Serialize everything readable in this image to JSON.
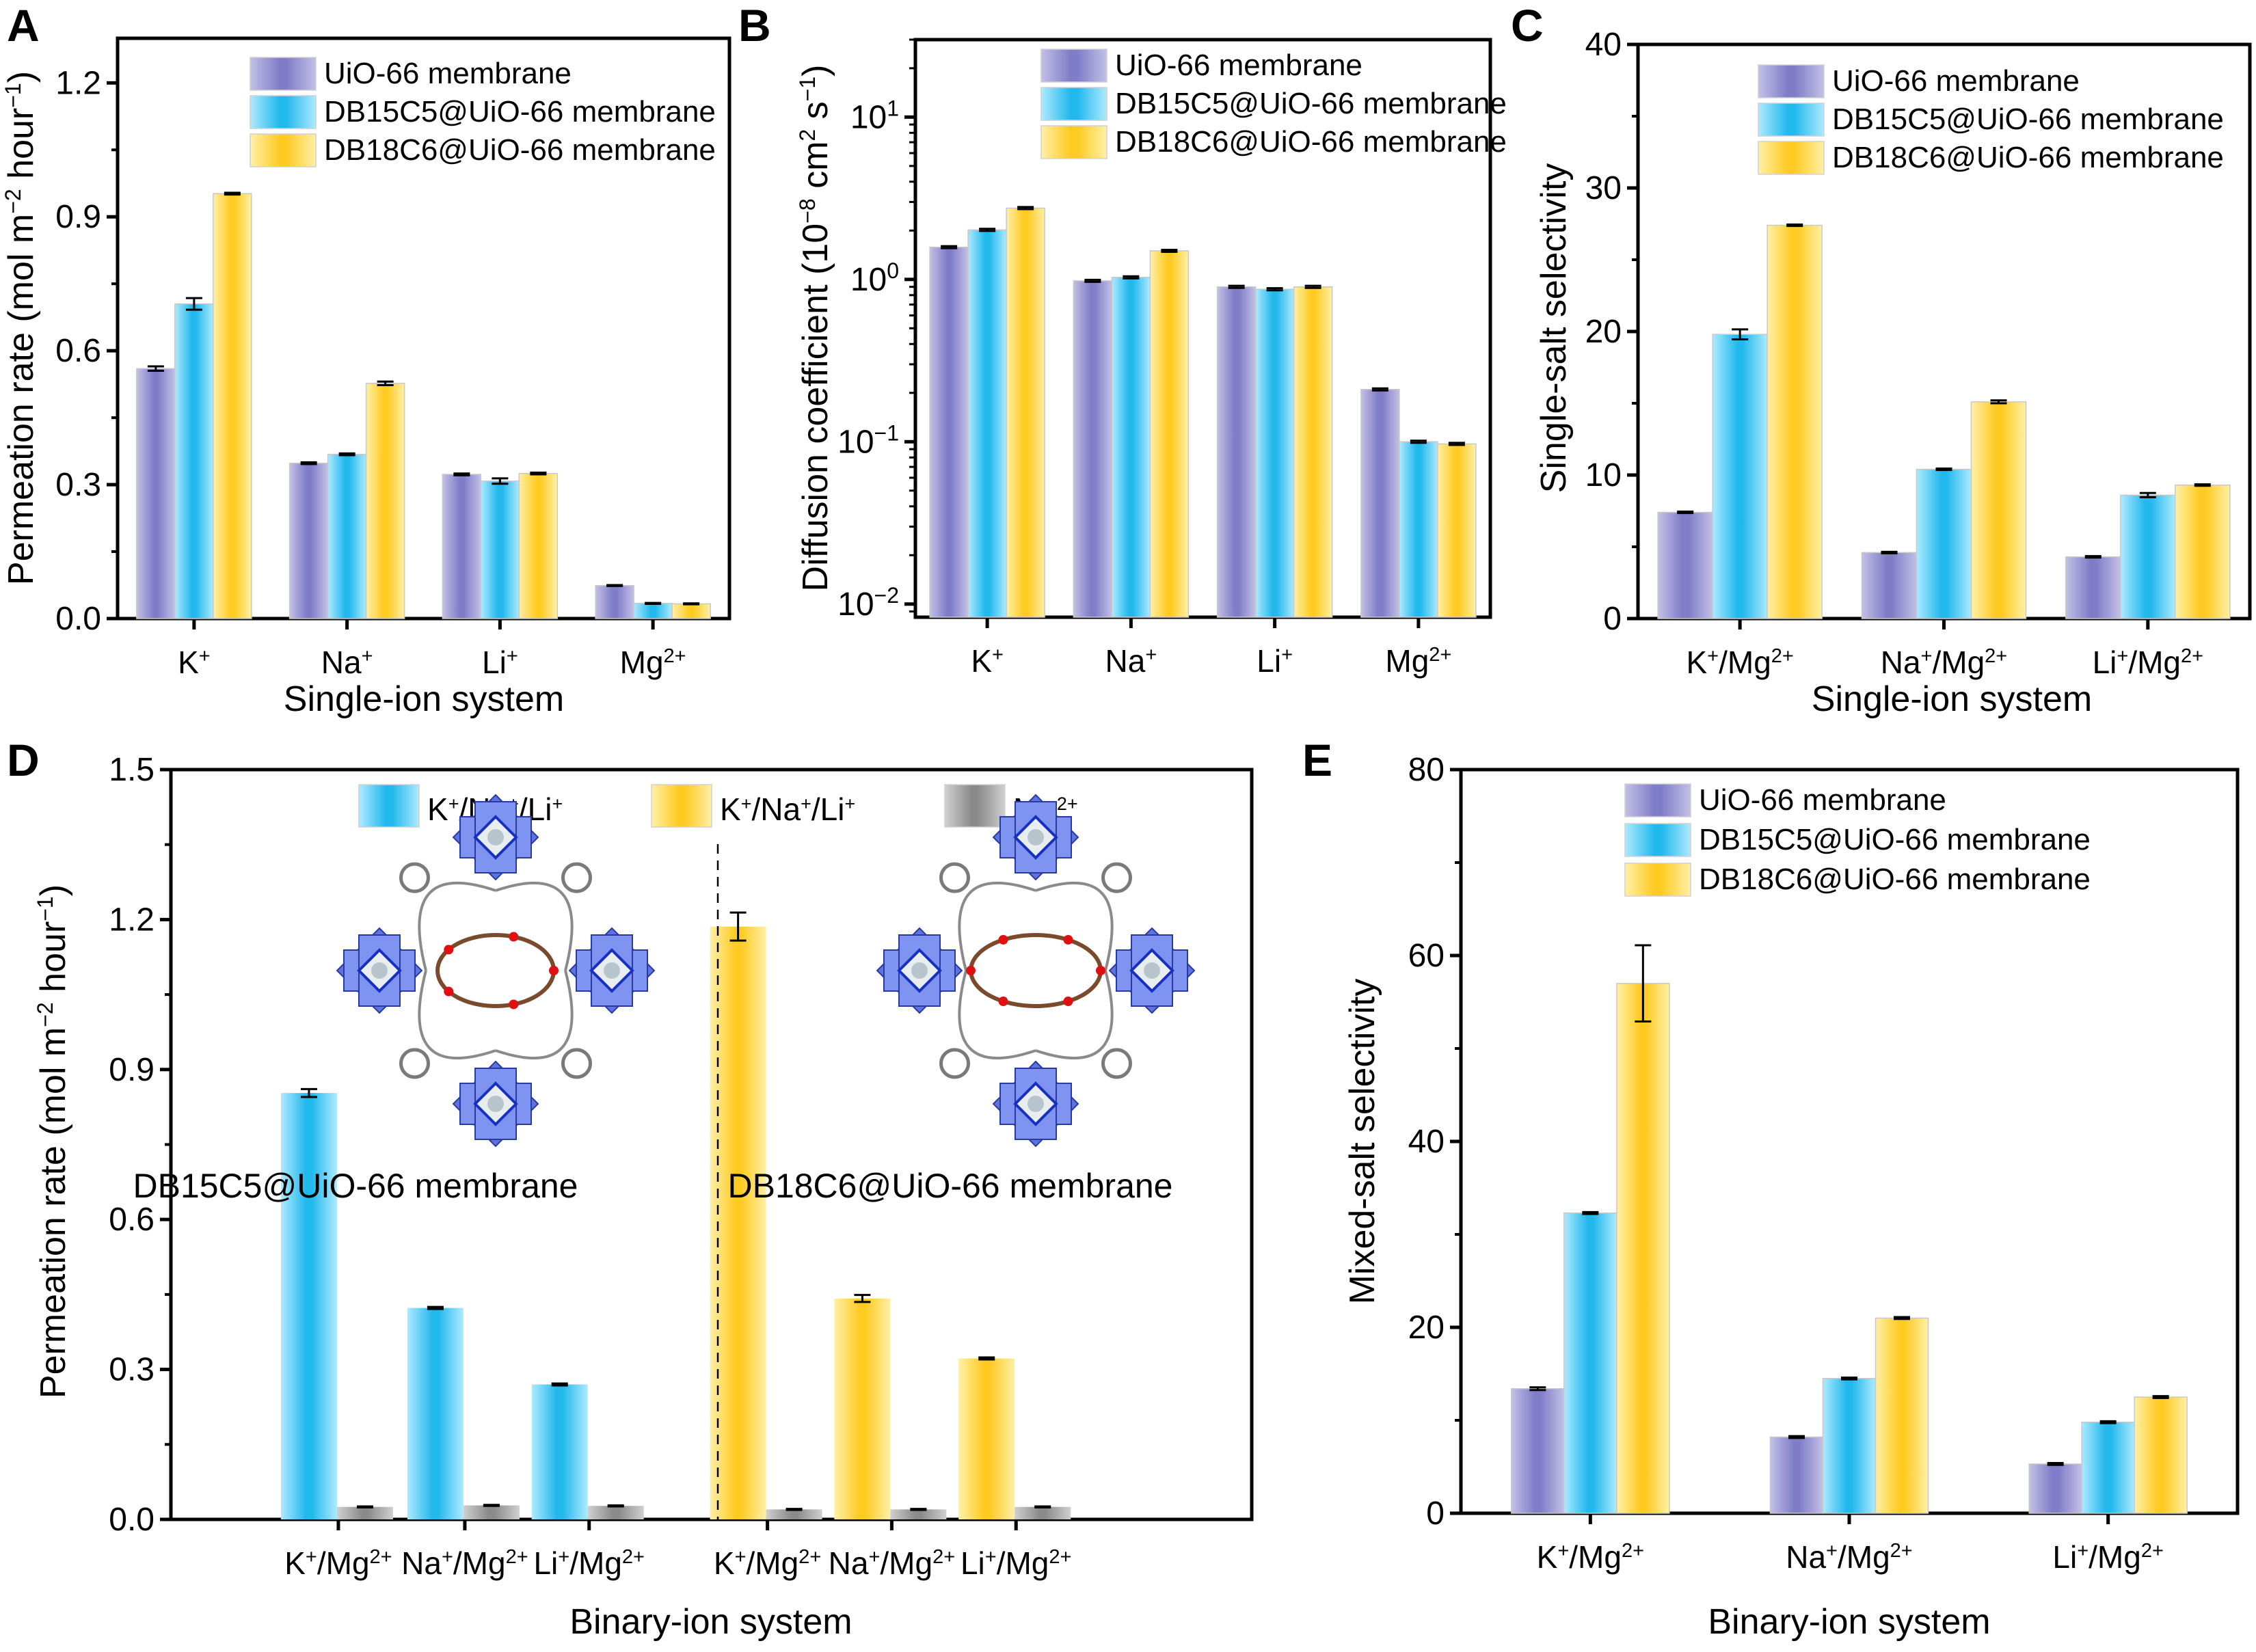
{
  "figure": {
    "panels": [
      "A",
      "B",
      "C",
      "D",
      "E"
    ]
  },
  "series_styles": {
    "UiO-66 membrane": {
      "edge": "#c3c0e6",
      "center": "#7f7cc8"
    },
    "DB15C5@UiO-66 membrane": {
      "edge": "#aeeaff",
      "center": "#21b8ec"
    },
    "DB18C6@UiO-66 membrane": {
      "edge": "#fff0a8",
      "center": "#ffcb22"
    },
    "Mg2+": {
      "edge": "#d0d0d0",
      "center": "#8a8a8a"
    }
  },
  "chart_data": [
    {
      "panel": "A",
      "type": "bar",
      "title": "",
      "xlabel": "Single-ion system",
      "ylabel": "Permeation rate (mol m⁻² hour⁻¹)",
      "categories": [
        "K⁺",
        "Na⁺",
        "Li⁺",
        "Mg²⁺"
      ],
      "ylim": [
        0,
        1.3
      ],
      "yticks": [
        0.0,
        0.3,
        0.6,
        0.9,
        1.2
      ],
      "ytick_labels": [
        "0.0",
        "0.3",
        "0.6",
        "0.9",
        "1.2"
      ],
      "yscale": "linear",
      "legend": {
        "position": "top-center",
        "entries": [
          "UiO-66 membrane",
          "DB15C5@UiO-66 membrane",
          "DB18C6@UiO-66 membrane"
        ]
      },
      "series": [
        {
          "name": "UiO-66 membrane",
          "values": [
            0.56,
            0.348,
            0.323,
            0.074
          ],
          "errors": [
            0.005,
            0.002,
            0.002,
            0.001
          ]
        },
        {
          "name": "DB15C5@UiO-66 membrane",
          "values": [
            0.705,
            0.368,
            0.308,
            0.034
          ],
          "errors": [
            0.013,
            0.002,
            0.006,
            0.001
          ]
        },
        {
          "name": "DB18C6@UiO-66 membrane",
          "values": [
            0.952,
            0.527,
            0.325,
            0.033
          ],
          "errors": [
            0.002,
            0.004,
            0.002,
            0.001
          ]
        }
      ]
    },
    {
      "panel": "B",
      "type": "bar",
      "title": "",
      "xlabel": "",
      "ylabel": "Diffusion coefficient (10⁻⁸ cm² s⁻¹)",
      "categories": [
        "K⁺",
        "Na⁺",
        "Li⁺",
        "Mg²⁺"
      ],
      "ylim": [
        0.0083,
        30
      ],
      "yscale": "log",
      "yticks": [
        0.01,
        0.1,
        1,
        10
      ],
      "ytick_labels": [
        {
          "base": "10",
          "exp": "−2"
        },
        {
          "base": "10",
          "exp": "−1"
        },
        {
          "base": "10",
          "exp": "0"
        },
        {
          "base": "10",
          "exp": "1"
        }
      ],
      "legend": {
        "position": "top-right",
        "entries": [
          "UiO-66 membrane",
          "DB15C5@UiO-66 membrane",
          "DB18C6@UiO-66 membrane"
        ]
      },
      "series": [
        {
          "name": "UiO-66 membrane",
          "values": [
            1.58,
            0.98,
            0.9,
            0.21
          ]
        },
        {
          "name": "DB15C5@UiO-66 membrane",
          "values": [
            2.02,
            1.03,
            0.87,
            0.1
          ]
        },
        {
          "name": "DB18C6@UiO-66 membrane",
          "values": [
            2.75,
            1.5,
            0.9,
            0.097
          ]
        }
      ]
    },
    {
      "panel": "C",
      "type": "bar",
      "title": "",
      "xlabel": "Single-ion system",
      "ylabel": "Single-salt selectivity",
      "categories": [
        "K⁺/Mg²⁺",
        "Na⁺/Mg²⁺",
        "Li⁺/Mg²⁺"
      ],
      "ylim": [
        0,
        40
      ],
      "yticks": [
        0,
        10,
        20,
        30,
        40
      ],
      "ytick_labels": [
        "0",
        "10",
        "20",
        "30",
        "40"
      ],
      "yscale": "linear",
      "legend": {
        "position": "top-right",
        "entries": [
          "UiO-66 membrane",
          "DB15C5@UiO-66 membrane",
          "DB18C6@UiO-66 membrane"
        ]
      },
      "series": [
        {
          "name": "UiO-66 membrane",
          "values": [
            7.4,
            4.6,
            4.3
          ],
          "errors": [
            0.05,
            0.05,
            0.05
          ]
        },
        {
          "name": "DB15C5@UiO-66 membrane",
          "values": [
            19.8,
            10.4,
            8.6
          ],
          "errors": [
            0.35,
            0.05,
            0.15
          ]
        },
        {
          "name": "DB18C6@UiO-66 membrane",
          "values": [
            27.4,
            15.1,
            9.3
          ],
          "errors": [
            0.05,
            0.1,
            0.05
          ]
        }
      ]
    },
    {
      "panel": "D",
      "type": "bar",
      "title": "",
      "xlabel": "Binary-ion system",
      "ylabel": "Permeation rate (mol m⁻² hour⁻¹)",
      "categories": [
        "K⁺/Mg²⁺",
        "Na⁺/Mg²⁺",
        "Li⁺/Mg²⁺",
        "K⁺/Mg²⁺",
        "Na⁺/Mg²⁺",
        "Li⁺/Mg²⁺"
      ],
      "groups": [
        "DB15C5@UiO-66 membrane",
        "DB15C5@UiO-66 membrane",
        "DB15C5@UiO-66 membrane",
        "DB18C6@UiO-66 membrane",
        "DB18C6@UiO-66 membrane",
        "DB18C6@UiO-66 membrane"
      ],
      "ylim": [
        0,
        1.5
      ],
      "yticks": [
        0.0,
        0.3,
        0.6,
        0.9,
        1.2,
        1.5
      ],
      "ytick_labels": [
        "0.0",
        "0.3",
        "0.6",
        "0.9",
        "1.2",
        "1.5"
      ],
      "yscale": "linear",
      "legend": {
        "position": "top-center",
        "entries": [
          "K⁺/Na⁺/Li⁺",
          "K⁺/Na⁺/Li⁺",
          "Mg²⁺"
        ]
      },
      "series": [
        {
          "name": "K⁺/Na⁺/Li⁺",
          "style": "DB15C5@UiO-66 membrane",
          "values": [
            0.853,
            0.423,
            0.27,
            null,
            null,
            null
          ],
          "errors": [
            0.008,
            0.002,
            0.002,
            null,
            null,
            null
          ]
        },
        {
          "name": "K⁺/Na⁺/Li⁺",
          "style": "DB18C6@UiO-66 membrane",
          "values": [
            null,
            null,
            null,
            1.186,
            0.442,
            0.322
          ],
          "errors": [
            null,
            null,
            null,
            0.028,
            0.007,
            0.002
          ]
        },
        {
          "name": "Mg²⁺",
          "style": "Mg2+",
          "values": [
            0.025,
            0.028,
            0.027,
            0.02,
            0.02,
            0.025
          ],
          "errors": [
            0.001,
            0.001,
            0.001,
            0.001,
            0.001,
            0.001
          ]
        }
      ],
      "annotations": [
        "DB15C5@UiO-66 membrane",
        "DB18C6@UiO-66 membrane"
      ],
      "divider": "dashed vertical line between the two membrane groups"
    },
    {
      "panel": "E",
      "type": "bar",
      "title": "",
      "xlabel": "Binary-ion system",
      "ylabel": "Mixed-salt selectivity",
      "categories": [
        "K⁺/Mg²⁺",
        "Na⁺/Mg²⁺",
        "Li⁺/Mg²⁺"
      ],
      "ylim": [
        0,
        80
      ],
      "yticks": [
        0,
        20,
        40,
        60,
        80
      ],
      "ytick_labels": [
        "0",
        "20",
        "40",
        "60",
        "80"
      ],
      "yscale": "linear",
      "legend": {
        "position": "top-right",
        "entries": [
          "UiO-66 membrane",
          "DB15C5@UiO-66 membrane",
          "DB18C6@UiO-66 membrane"
        ]
      },
      "series": [
        {
          "name": "UiO-66 membrane",
          "values": [
            13.4,
            8.2,
            5.3
          ],
          "errors": [
            0.15,
            0.1,
            0.1
          ]
        },
        {
          "name": "DB15C5@UiO-66 membrane",
          "values": [
            32.3,
            14.5,
            9.8
          ],
          "errors": [
            0.1,
            0.1,
            0.1
          ]
        },
        {
          "name": "DB18C6@UiO-66 membrane",
          "values": [
            57.0,
            21.0,
            12.5
          ],
          "errors": [
            4.1,
            0.1,
            0.1
          ]
        }
      ]
    }
  ]
}
